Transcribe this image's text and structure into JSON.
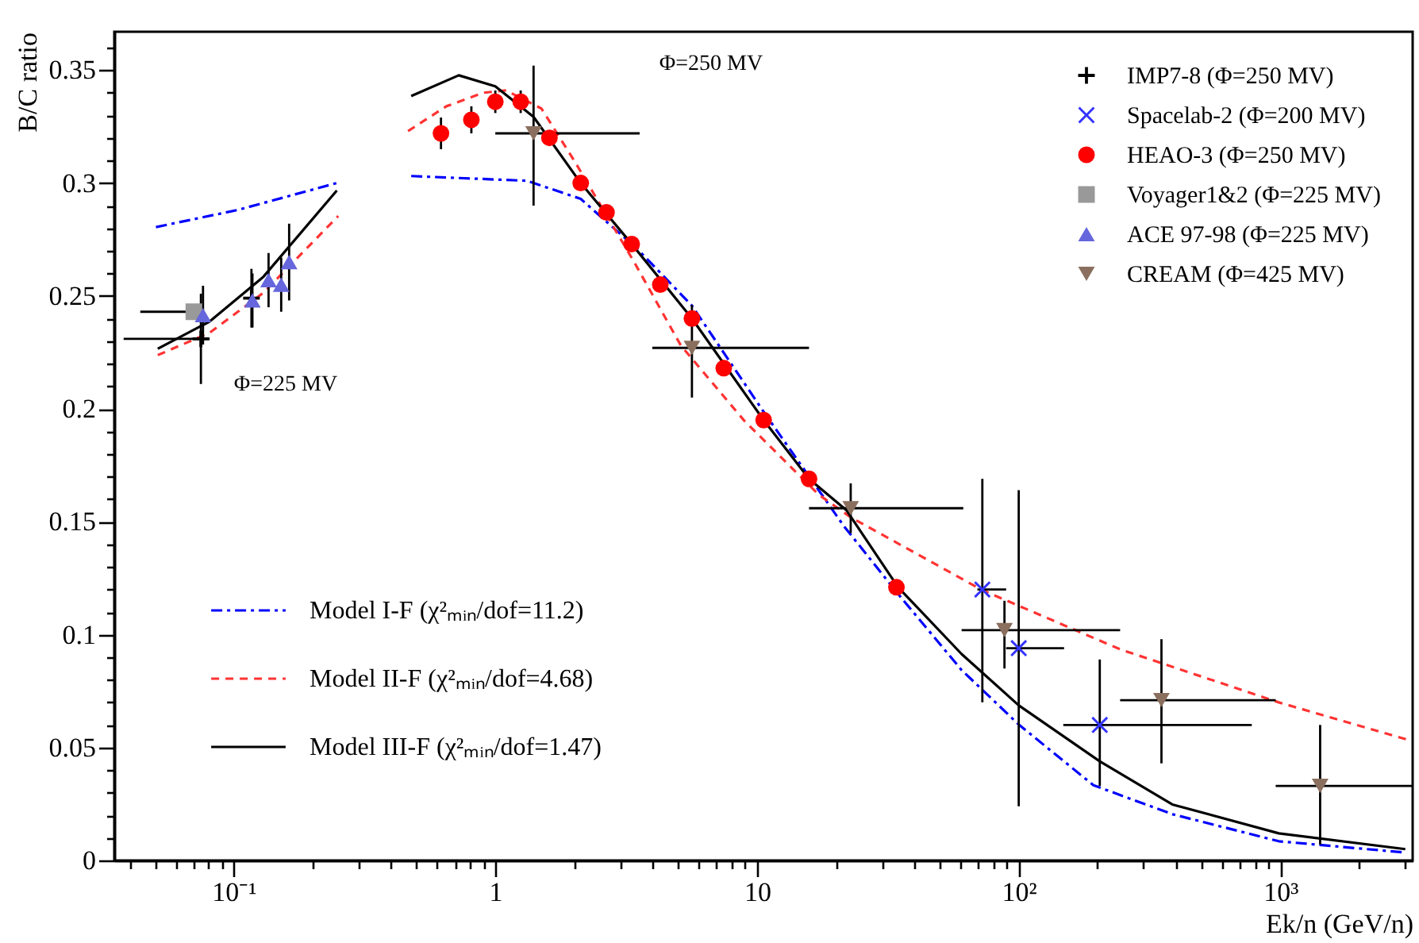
{
  "chart_data": {
    "type": "scatter",
    "xlabel": "Ek/n (GeV/n)",
    "ylabel": "B/C ratio",
    "log": "x",
    "legend": "top right",
    "xlim": [
      0.035,
      3200
    ],
    "ylim": [
      0,
      0.367
    ],
    "xticks": [
      {
        "value": 0.04,
        "label": null
      },
      {
        "value": 0.05,
        "label": null
      },
      {
        "value": 0.06,
        "label": null
      },
      {
        "value": 0.07,
        "label": null
      },
      {
        "value": 0.08,
        "label": null
      },
      {
        "value": 0.09,
        "label": null
      },
      {
        "value": 0.1,
        "label": "10⁻¹"
      },
      {
        "value": 0.2,
        "label": null
      },
      {
        "value": 0.3,
        "label": null
      },
      {
        "value": 0.4,
        "label": null
      },
      {
        "value": 0.5,
        "label": null
      },
      {
        "value": 0.6,
        "label": null
      },
      {
        "value": 0.7,
        "label": null
      },
      {
        "value": 0.8,
        "label": null
      },
      {
        "value": 0.9,
        "label": null
      },
      1,
      {
        "value": 2,
        "label": null
      },
      {
        "value": 3,
        "label": null
      },
      {
        "value": 4,
        "label": null
      },
      {
        "value": 5,
        "label": null
      },
      {
        "value": 6,
        "label": null
      },
      {
        "value": 7,
        "label": null
      },
      {
        "value": 8,
        "label": null
      },
      {
        "value": 9,
        "label": null
      },
      10,
      {
        "value": 20,
        "label": null
      },
      {
        "value": 30,
        "label": null
      },
      {
        "value": 40,
        "label": null
      },
      {
        "value": 50,
        "label": null
      },
      {
        "value": 60,
        "label": null
      },
      {
        "value": 70,
        "label": null
      },
      {
        "value": 80,
        "label": null
      },
      {
        "value": 90,
        "label": null
      },
      {
        "value": 100,
        "label": "10²"
      },
      {
        "value": 200,
        "label": null
      },
      {
        "value": 300,
        "label": null
      },
      {
        "value": 400,
        "label": null
      },
      {
        "value": 500,
        "label": null
      },
      {
        "value": 600,
        "label": null
      },
      {
        "value": 700,
        "label": null
      },
      {
        "value": 800,
        "label": null
      },
      {
        "value": 900,
        "label": null
      },
      {
        "value": 1000,
        "label": "10³"
      },
      {
        "value": 2000,
        "label": null
      },
      {
        "value": 3000,
        "label": null
      }
    ],
    "yticks": [
      0,
      {
        "value": 0.01,
        "label": null
      },
      {
        "value": 0.02,
        "label": null
      },
      {
        "value": 0.03,
        "label": null
      },
      {
        "value": 0.04,
        "label": null
      },
      0.05,
      {
        "value": 0.06,
        "label": null
      },
      {
        "value": 0.07,
        "label": null
      },
      {
        "value": 0.08,
        "label": null
      },
      {
        "value": 0.09,
        "label": null
      },
      0.1,
      {
        "value": 0.11,
        "label": null
      },
      {
        "value": 0.12,
        "label": null
      },
      {
        "value": 0.13,
        "label": null
      },
      {
        "value": 0.14,
        "label": null
      },
      0.15,
      {
        "value": 0.16,
        "label": null
      },
      {
        "value": 0.17,
        "label": null
      },
      {
        "value": 0.18,
        "label": null
      },
      {
        "value": 0.19,
        "label": null
      },
      0.2,
      {
        "value": 0.21,
        "label": null
      },
      {
        "value": 0.22,
        "label": null
      },
      {
        "value": 0.23,
        "label": null
      },
      {
        "value": 0.24,
        "label": null
      },
      0.25,
      {
        "value": 0.26,
        "label": null
      },
      {
        "value": 0.27,
        "label": null
      },
      {
        "value": 0.28,
        "label": null
      },
      {
        "value": 0.29,
        "label": null
      },
      0.3,
      {
        "value": 0.31,
        "label": null
      },
      {
        "value": 0.32,
        "label": null
      },
      {
        "value": 0.33,
        "label": null
      },
      {
        "value": 0.34,
        "label": null
      },
      0.35,
      {
        "value": 0.36,
        "label": null
      }
    ],
    "annotations": [
      "Φ=250 MV",
      "Φ=225 MV"
    ],
    "series": [
      {
        "name": "IMP7-8 (Φ=250 MV)",
        "marker": "cross",
        "color": "#000000",
        "x": [
          0.075,
          0.117
        ],
        "values": [
          0.231,
          0.249
        ],
        "errors": [
          [
            0.211,
            0.251
          ],
          0.013
        ],
        "xerrors": [
          [
            0.038,
            0.081
          ],
          null
        ]
      },
      {
        "name": "Spacelab-2 (Φ=200 MV)",
        "marker": "x",
        "color": "#3333ff",
        "x": [
          72.6,
          100,
          204
        ],
        "values": [
          0.12,
          0.094,
          0.06
        ],
        "errors": [
          [
            0.07,
            0.169
          ],
          [
            0.024,
            0.164
          ],
          [
            0.033,
            0.089
          ]
        ],
        "xerrors": [
          [
            69.5,
            89.5
          ],
          [
            89.5,
            149
          ],
          [
            148,
            777
          ]
        ]
      },
      {
        "name": "HEAO-3 (Φ=250 MV)",
        "marker": "circle",
        "color": "#ff0000",
        "x": [
          0.62,
          0.81,
          1.0,
          1.25,
          1.61,
          2.12,
          2.66,
          3.32,
          4.27,
          5.64,
          7.46,
          10.6,
          15.8,
          34.1
        ],
        "values": [
          0.322,
          0.328,
          0.336,
          0.336,
          0.32,
          0.3,
          0.287,
          0.273,
          0.255,
          0.24,
          0.218,
          0.195,
          0.169,
          0.121
        ],
        "errors": [
          0.007,
          0.006,
          0.005,
          0.005,
          null,
          null,
          null,
          null,
          null,
          null,
          null,
          null,
          null,
          null
        ]
      },
      {
        "name": "Voyager1&2 (Φ=225 MV)",
        "marker": "square",
        "color": "#999999",
        "x": [
          0.0705
        ],
        "values": [
          0.243
        ],
        "xerrors": [
          [
            0.044,
            0.076
          ]
        ]
      },
      {
        "name": "ACE 97-98 (Φ=225 MV)",
        "marker": "triangle",
        "color": "#6666dd",
        "x": [
          0.0764,
          0.118,
          0.136,
          0.152,
          0.163
        ],
        "values": [
          0.2415,
          0.248,
          0.257,
          0.255,
          0.265
        ],
        "errors": [
          0.013,
          0.012,
          0.012,
          0.012,
          0.017
        ]
      },
      {
        "name": "CREAM (Φ=425 MV)",
        "marker": "triangle-down",
        "color": "#8b6f5e",
        "x": [
          1.4,
          5.64,
          22.8,
          88.2,
          351,
          1418
        ],
        "values": [
          0.322,
          0.227,
          0.156,
          0.102,
          0.071,
          0.033
        ],
        "errors": [
          [
            0.29,
            0.352
          ],
          [
            0.205,
            0.246
          ],
          [
            0.145,
            0.167
          ],
          [
            0.085,
            0.115
          ],
          [
            0.043,
            0.098
          ],
          [
            0.007,
            0.06
          ]
        ],
        "xerrors": [
          [
            1.0,
            3.56
          ],
          [
            3.98,
            15.8
          ],
          [
            15.8,
            61.4
          ],
          [
            60.5,
            244
          ],
          [
            244,
            959
          ],
          [
            959,
            3200
          ]
        ]
      },
      {
        "name": "Model I-F  (χ²ₘᵢₙ/dof=11.2)",
        "type": "line",
        "line_style": "dashdot",
        "color": "#0000ff",
        "x": [
          0.0505,
          0.103,
          0.248,
          0.3,
          0.477,
          1.32,
          2.12,
          3.51,
          5.64,
          10.7,
          21.5,
          34.6,
          60.5,
          100,
          193,
          386,
          986,
          3000
        ],
        "values": [
          0.2805,
          0.288,
          0.3,
          null,
          0.3031,
          0.301,
          0.293,
          0.2705,
          0.2457,
          0.198,
          0.148,
          0.118,
          0.0843,
          0.0602,
          0.0333,
          0.0205,
          0.0085,
          0.0035
        ]
      },
      {
        "name": "Model II-F  (χ²ₘᵢₙ/dof=4.68)",
        "type": "line",
        "line_style": "dashed",
        "color": "#ff3333",
        "x": [
          0.0513,
          0.081,
          0.13,
          0.251,
          0.3,
          0.464,
          0.65,
          0.9,
          1.1,
          1.5,
          2.0,
          3.37,
          5.12,
          8.93,
          17.2,
          22.8,
          72.6,
          244,
          986,
          3140
        ],
        "values": [
          0.2238,
          0.2337,
          0.2514,
          0.2854,
          null,
          0.323,
          0.334,
          0.34,
          0.341,
          0.333,
          0.31,
          0.2656,
          0.228,
          0.1948,
          0.162,
          0.152,
          0.1197,
          0.0935,
          0.07,
          0.0531
        ]
      },
      {
        "name": "Model III-F (χ²ₘᵢₙ/dof=1.47)",
        "type": "line",
        "line_style": "solid",
        "color": "#000000",
        "x": [
          0.0513,
          0.081,
          0.13,
          0.248,
          0.3,
          0.477,
          0.725,
          1.0,
          1.4,
          2.12,
          3.32,
          5.64,
          10.6,
          15.8,
          22,
          34.6,
          60.5,
          100,
          204,
          386,
          986,
          3000
        ],
        "values": [
          0.2266,
          0.2387,
          0.2585,
          0.2967,
          null,
          0.3385,
          0.3477,
          0.3428,
          0.3293,
          0.3,
          0.273,
          0.24,
          0.195,
          0.169,
          0.155,
          0.121,
          0.0914,
          0.0687,
          0.0439,
          0.0248,
          0.012,
          0.005
        ]
      }
    ]
  }
}
